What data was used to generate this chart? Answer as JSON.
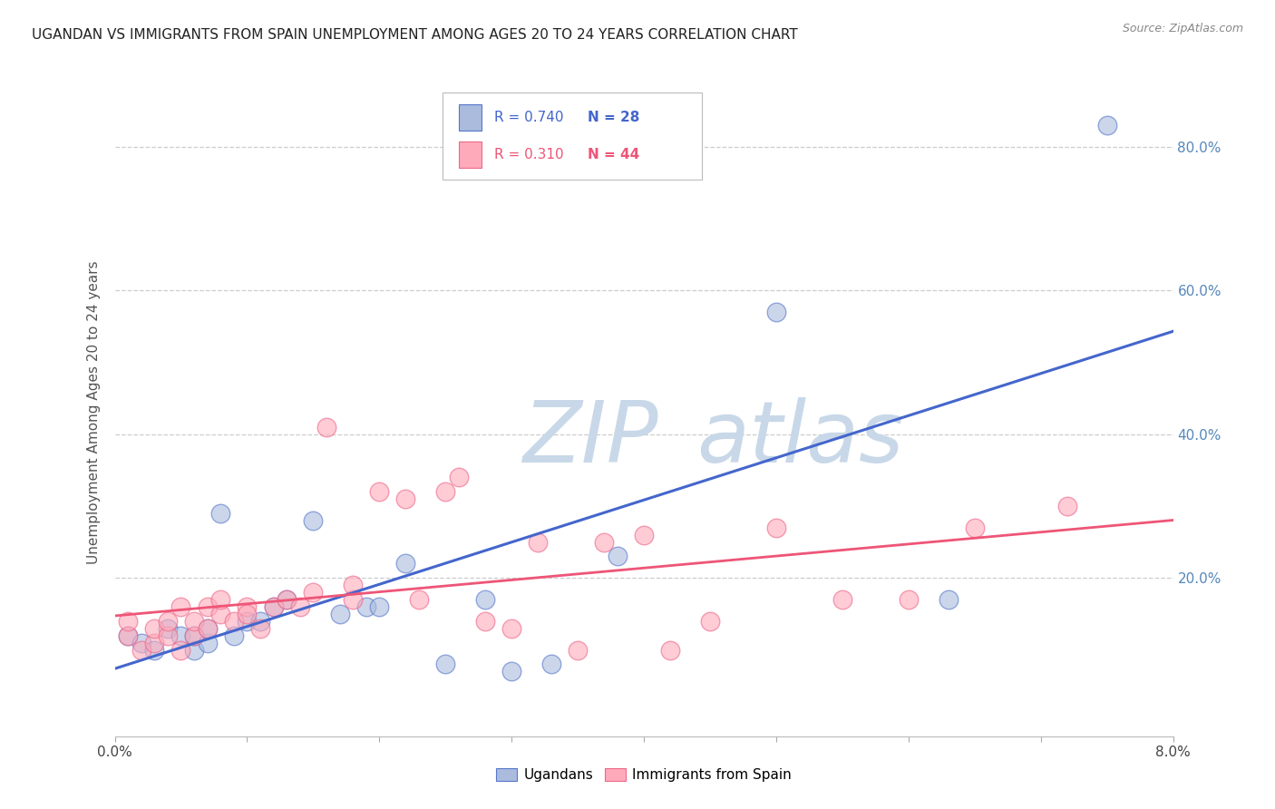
{
  "title": "UGANDAN VS IMMIGRANTS FROM SPAIN UNEMPLOYMENT AMONG AGES 20 TO 24 YEARS CORRELATION CHART",
  "source": "Source: ZipAtlas.com",
  "ylabel": "Unemployment Among Ages 20 to 24 years",
  "xlim": [
    0.0,
    0.08
  ],
  "ylim": [
    -0.02,
    0.88
  ],
  "yticks": [
    0.0,
    0.2,
    0.4,
    0.6,
    0.8
  ],
  "ytick_labels": [
    "",
    "20.0%",
    "40.0%",
    "60.0%",
    "80.0%"
  ],
  "legend_label1": "Ugandans",
  "legend_label2": "Immigrants from Spain",
  "r1": "0.740",
  "n1": "28",
  "r2": "0.310",
  "n2": "44",
  "blue_fill": "#AABBDD",
  "blue_edge": "#5577CC",
  "pink_fill": "#FFAABB",
  "pink_edge": "#EE6688",
  "blue_line": "#4466CC",
  "pink_line": "#EE5577",
  "watermark_zip_color": "#C8D8E8",
  "watermark_atlas_color": "#C8D8E8",
  "background_color": "#FFFFFF",
  "blue_x": [
    0.001,
    0.002,
    0.003,
    0.004,
    0.005,
    0.006,
    0.006,
    0.007,
    0.007,
    0.008,
    0.009,
    0.01,
    0.011,
    0.012,
    0.013,
    0.015,
    0.017,
    0.019,
    0.02,
    0.022,
    0.025,
    0.028,
    0.03,
    0.033,
    0.038,
    0.05,
    0.063,
    0.075
  ],
  "blue_y": [
    0.12,
    0.11,
    0.1,
    0.13,
    0.12,
    0.1,
    0.12,
    0.11,
    0.13,
    0.29,
    0.12,
    0.14,
    0.14,
    0.16,
    0.17,
    0.28,
    0.15,
    0.16,
    0.16,
    0.22,
    0.08,
    0.17,
    0.07,
    0.08,
    0.23,
    0.57,
    0.17,
    0.83
  ],
  "pink_x": [
    0.001,
    0.001,
    0.002,
    0.003,
    0.003,
    0.004,
    0.004,
    0.005,
    0.005,
    0.006,
    0.006,
    0.007,
    0.007,
    0.008,
    0.008,
    0.009,
    0.01,
    0.01,
    0.011,
    0.012,
    0.013,
    0.014,
    0.015,
    0.016,
    0.018,
    0.018,
    0.02,
    0.022,
    0.023,
    0.025,
    0.026,
    0.028,
    0.03,
    0.032,
    0.035,
    0.037,
    0.04,
    0.042,
    0.045,
    0.05,
    0.055,
    0.06,
    0.065,
    0.072
  ],
  "pink_y": [
    0.12,
    0.14,
    0.1,
    0.11,
    0.13,
    0.12,
    0.14,
    0.1,
    0.16,
    0.12,
    0.14,
    0.13,
    0.16,
    0.15,
    0.17,
    0.14,
    0.16,
    0.15,
    0.13,
    0.16,
    0.17,
    0.16,
    0.18,
    0.41,
    0.17,
    0.19,
    0.32,
    0.31,
    0.17,
    0.32,
    0.34,
    0.14,
    0.13,
    0.25,
    0.1,
    0.25,
    0.26,
    0.1,
    0.14,
    0.27,
    0.17,
    0.17,
    0.27,
    0.3
  ]
}
